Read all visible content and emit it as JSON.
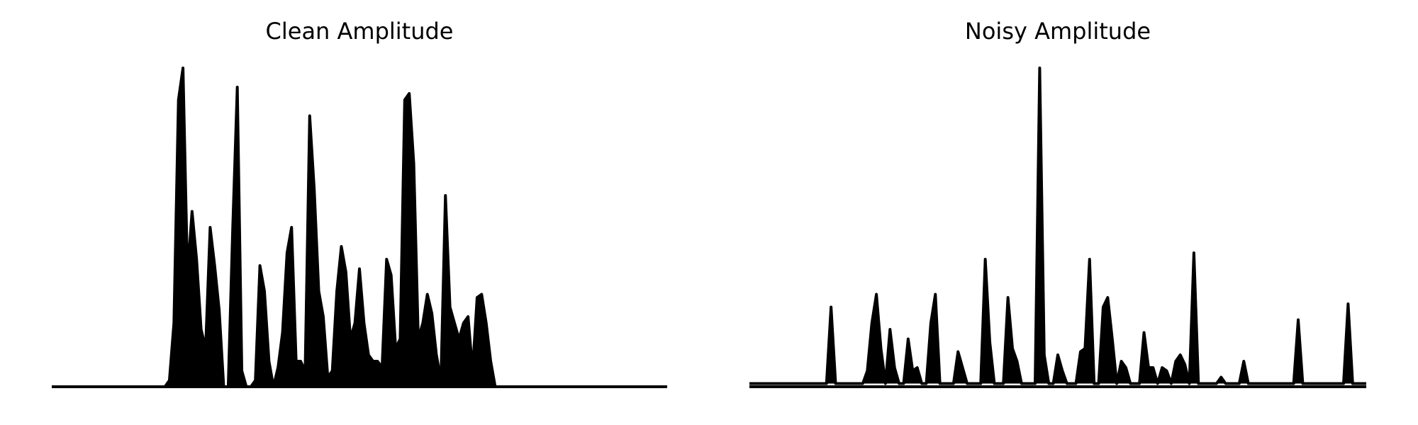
{
  "chart_data": [
    {
      "type": "area",
      "title": "Clean Amplitude",
      "color": "#000000",
      "ylim": [
        0,
        1
      ],
      "values": [
        0,
        0,
        0,
        0,
        0,
        0,
        0,
        0,
        0,
        0,
        0,
        0,
        0,
        0,
        0,
        0,
        0,
        0,
        0,
        0,
        0,
        0,
        0,
        0,
        0,
        0,
        0.02,
        0.2,
        0.9,
        1.0,
        0.35,
        0.55,
        0.4,
        0.18,
        0.12,
        0.5,
        0.38,
        0.24,
        0,
        0,
        0.5,
        0.94,
        0.05,
        0,
        0,
        0.02,
        0.38,
        0.3,
        0.08,
        0,
        0.06,
        0.17,
        0.42,
        0.5,
        0.08,
        0.08,
        0.05,
        0.85,
        0.62,
        0.3,
        0.22,
        0.03,
        0.05,
        0.3,
        0.44,
        0.36,
        0.15,
        0.2,
        0.37,
        0.2,
        0.1,
        0.08,
        0.08,
        0.06,
        0.4,
        0.35,
        0.12,
        0.15,
        0.9,
        0.92,
        0.7,
        0.15,
        0.2,
        0.29,
        0.23,
        0.1,
        0.02,
        0.6,
        0.25,
        0.2,
        0.15,
        0.2,
        0.22,
        0.05,
        0.28,
        0.29,
        0.2,
        0.08,
        0,
        0,
        0,
        0,
        0,
        0,
        0,
        0,
        0,
        0,
        0,
        0,
        0,
        0,
        0,
        0,
        0,
        0,
        0,
        0,
        0,
        0,
        0,
        0,
        0,
        0,
        0,
        0,
        0,
        0,
        0,
        0,
        0,
        0,
        0,
        0,
        0,
        0,
        0
      ]
    },
    {
      "type": "area",
      "title": "Noisy Amplitude",
      "color": "#000000",
      "ylim": [
        0,
        1
      ],
      "values": [
        0.01,
        0.01,
        0.01,
        0.01,
        0.01,
        0.01,
        0.01,
        0.01,
        0.01,
        0.01,
        0.01,
        0.01,
        0.01,
        0.01,
        0.01,
        0.01,
        0.01,
        0.01,
        0.25,
        0.01,
        0.01,
        0.01,
        0.01,
        0.01,
        0.01,
        0.01,
        0.05,
        0.2,
        0.29,
        0.12,
        0.01,
        0.18,
        0.06,
        0.01,
        0.01,
        0.15,
        0.05,
        0.06,
        0.01,
        0.01,
        0.2,
        0.29,
        0.01,
        0.01,
        0.01,
        0.01,
        0.11,
        0.06,
        0.01,
        0.01,
        0.01,
        0.01,
        0.4,
        0.14,
        0.01,
        0.01,
        0.01,
        0.28,
        0.12,
        0.08,
        0.01,
        0.01,
        0.01,
        0.01,
        1.0,
        0.1,
        0.01,
        0.01,
        0.1,
        0.05,
        0.01,
        0.01,
        0.01,
        0.11,
        0.12,
        0.4,
        0.01,
        0.01,
        0.25,
        0.28,
        0.15,
        0.01,
        0.08,
        0.06,
        0.01,
        0.01,
        0.01,
        0.17,
        0.06,
        0.06,
        0.01,
        0.06,
        0.05,
        0.01,
        0.08,
        0.1,
        0.07,
        0.01,
        0.42,
        0.01,
        0.01,
        0.01,
        0.01,
        0.01,
        0.03,
        0.01,
        0.01,
        0.01,
        0.01,
        0.08,
        0.01,
        0.01,
        0.01,
        0.01,
        0.01,
        0.01,
        0.01,
        0.01,
        0.01,
        0.01,
        0.01,
        0.21,
        0.01,
        0.01,
        0.01,
        0.01,
        0.01,
        0.01,
        0.01,
        0.01,
        0.01,
        0.01,
        0.26,
        0.01,
        0.01,
        0.01,
        0.01
      ]
    }
  ]
}
